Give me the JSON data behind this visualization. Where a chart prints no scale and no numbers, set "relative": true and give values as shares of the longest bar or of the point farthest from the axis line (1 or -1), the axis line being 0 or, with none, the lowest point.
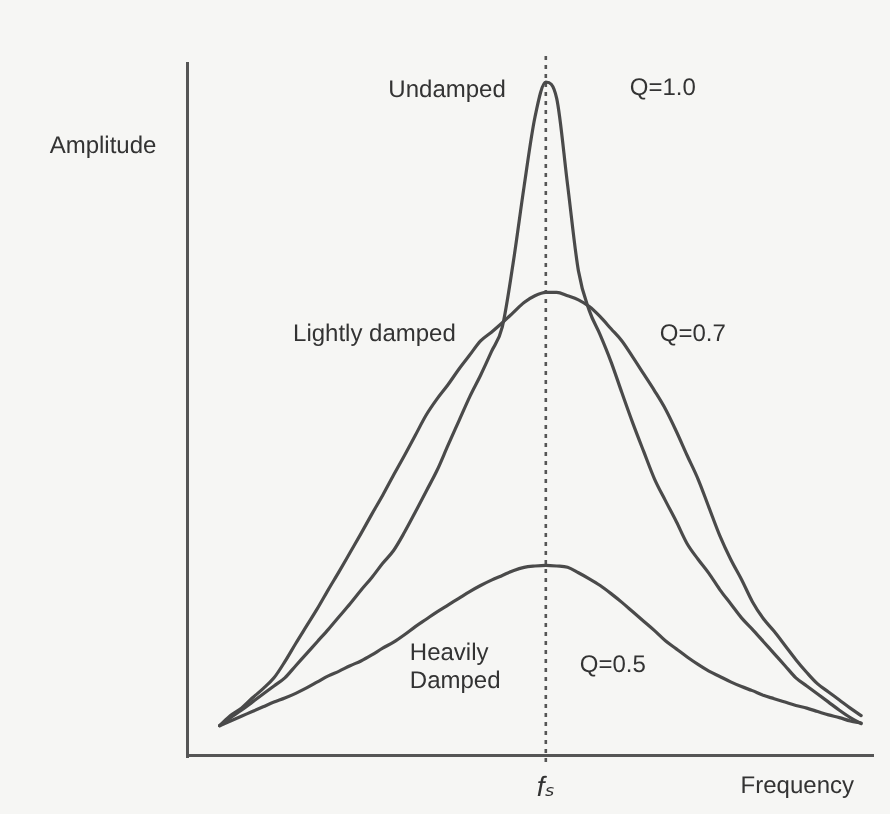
{
  "chart_data": {
    "type": "line",
    "relative": true,
    "xlabel": "Frequency",
    "ylabel": "Amplitude",
    "marker": "none",
    "categories": [
      null,
      null,
      null,
      null,
      null,
      null,
      null,
      null,
      null,
      null,
      null,
      null,
      null,
      null,
      null,
      null,
      null,
      null,
      null,
      null,
      null,
      null,
      null,
      null,
      null,
      null,
      null,
      null,
      null,
      null,
      null,
      null,
      null,
      null,
      null,
      null,
      null,
      null,
      null,
      null,
      null,
      null,
      null,
      null,
      null,
      null,
      null,
      null,
      null,
      null,
      null,
      null,
      null,
      null,
      null,
      null,
      null,
      null,
      null,
      null,
      null,
      null,
      null,
      null
    ],
    "series": [
      {
        "name": "Undamped",
        "color": "#4a4a4a",
        "values": [
          null,
          null,
          null,
          0.045,
          0.057,
          0.068,
          0.08,
          0.092,
          0.104,
          0.116,
          0.134,
          0.152,
          0.17,
          0.188,
          0.207,
          0.226,
          0.246,
          0.265,
          0.286,
          0.305,
          0.332,
          0.362,
          0.393,
          0.424,
          0.461,
          0.497,
          0.533,
          0.565,
          0.6,
          0.637,
          0.732,
          0.845,
          0.948,
          1,
          0.976,
          0.848,
          0.72,
          0.661,
          0.625,
          0.585,
          0.539,
          0.494,
          0.452,
          0.411,
          0.379,
          0.348,
          0.315,
          0.292,
          0.271,
          0.247,
          0.226,
          0.205,
          0.188,
          0.17,
          0.152,
          0.134,
          0.116,
          0.104,
          0.092,
          0.08,
          0.068,
          0.057,
          0.048,
          null
        ]
      },
      {
        "name": "Lightly damped",
        "color": "#4a4a4a",
        "values": [
          null,
          null,
          null,
          0.045,
          0.06,
          0.071,
          0.086,
          0.1,
          0.116,
          0.14,
          0.167,
          0.193,
          0.219,
          0.247,
          0.274,
          0.302,
          0.33,
          0.359,
          0.387,
          0.417,
          0.446,
          0.476,
          0.506,
          0.53,
          0.551,
          0.574,
          0.595,
          0.616,
          0.629,
          0.643,
          0.658,
          0.673,
          0.683,
          0.688,
          0.688,
          0.683,
          0.677,
          0.667,
          0.652,
          0.634,
          0.616,
          0.592,
          0.567,
          0.542,
          0.515,
          0.482,
          0.446,
          0.411,
          0.369,
          0.327,
          0.292,
          0.262,
          0.229,
          0.204,
          0.185,
          0.164,
          0.143,
          0.124,
          0.107,
          0.095,
          0.083,
          0.071,
          0.06,
          null
        ]
      },
      {
        "name": "Heavily Damped",
        "color": "#4a4a4a",
        "values": [
          null,
          null,
          null,
          0.045,
          0.052,
          0.059,
          0.066,
          0.073,
          0.08,
          0.086,
          0.093,
          0.101,
          0.11,
          0.119,
          0.126,
          0.134,
          0.141,
          0.15,
          0.16,
          0.169,
          0.18,
          0.192,
          0.203,
          0.214,
          0.224,
          0.234,
          0.244,
          0.253,
          0.261,
          0.268,
          0.275,
          0.28,
          0.282,
          0.283,
          0.282,
          0.28,
          0.272,
          0.263,
          0.253,
          0.241,
          0.228,
          0.214,
          0.2,
          0.186,
          0.171,
          0.159,
          0.147,
          0.136,
          0.126,
          0.118,
          0.11,
          0.103,
          0.097,
          0.09,
          0.085,
          0.08,
          0.075,
          0.071,
          0.066,
          0.061,
          0.057,
          0.052,
          0.049,
          null
        ]
      }
    ],
    "annotations": [
      "Q=1.0",
      "Q=0.7",
      "Q=0.5"
    ],
    "ref_lines": [
      {
        "axis": "x",
        "value": "fₛ",
        "line_style": "dotted",
        "color": "#555555"
      }
    ]
  }
}
